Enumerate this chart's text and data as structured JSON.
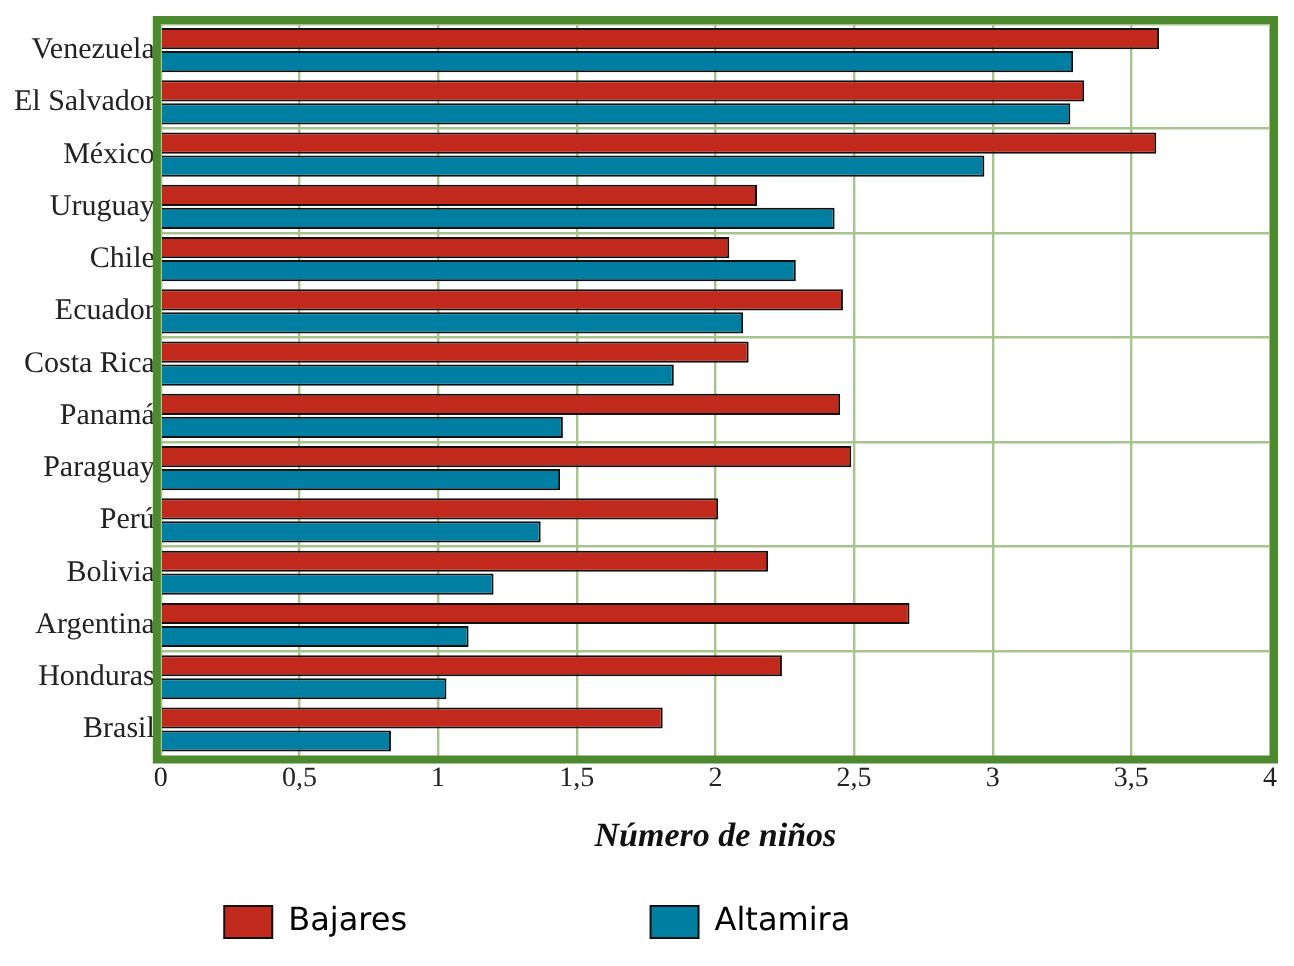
{
  "chart_data": {
    "type": "bar",
    "orientation": "horizontal",
    "xlabel": "Número de niños",
    "categories": [
      "Venezuela",
      "El Salvador",
      "México",
      "Uruguay",
      "Chile",
      "Ecuador",
      "Costa Rica",
      "Panamá",
      "Paraguay",
      "Perú",
      "Bolivia",
      "Argentina",
      "Honduras",
      "Brasil"
    ],
    "series": [
      {
        "name": "Bajares",
        "color": "#c0291b",
        "values": [
          3.6,
          3.33,
          3.59,
          2.15,
          2.05,
          2.46,
          2.12,
          2.45,
          2.49,
          2.01,
          2.19,
          2.7,
          2.24,
          1.81
        ]
      },
      {
        "name": "Altamira",
        "color": "#007fa3",
        "values": [
          3.29,
          3.28,
          2.97,
          2.43,
          2.29,
          2.1,
          1.85,
          1.45,
          1.44,
          1.37,
          1.2,
          1.11,
          1.03,
          0.83
        ]
      }
    ],
    "xlim": [
      0,
      4
    ],
    "xticks": [
      0,
      {
        "value": 0.5,
        "label": "0,5"
      },
      1,
      {
        "value": 1.5,
        "label": "1,5"
      },
      2,
      {
        "value": 2.5,
        "label": "2,5"
      },
      3,
      {
        "value": 3.5,
        "label": "3,5"
      },
      4
    ],
    "grid": true,
    "legend": "bottom"
  }
}
